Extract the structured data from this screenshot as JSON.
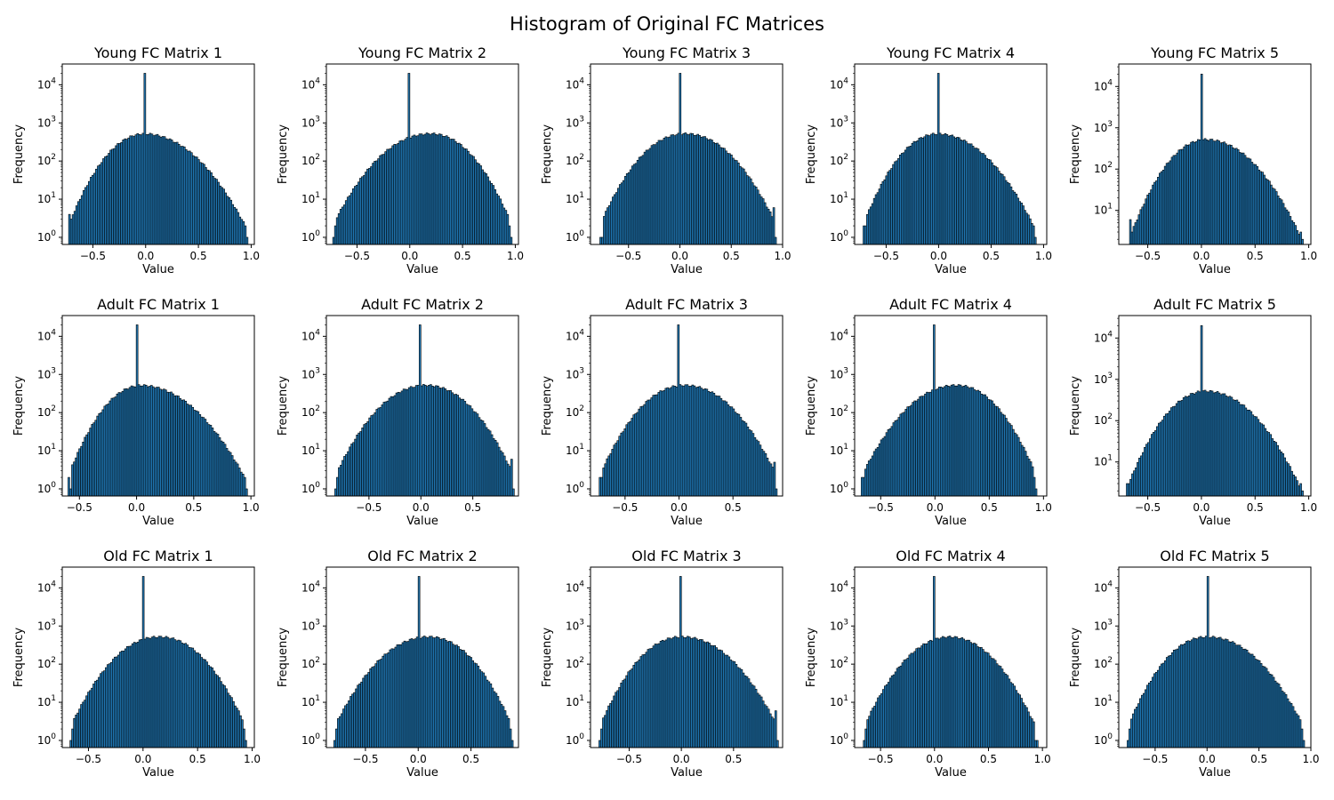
{
  "figure": {
    "title": "Histogram of Original FC Matrices",
    "bar_color": "#1f77b4",
    "edge_color": "#000000"
  },
  "chart_data": [
    {
      "type": "bar",
      "title": "Young FC Matrix 1",
      "xlabel": "Value",
      "ylabel": "Frequency",
      "yscale": "log",
      "xlim": [
        -0.79,
        1.03
      ],
      "ylim": [
        0.65,
        35000
      ],
      "xticks": [
        "-0.5",
        "0.0",
        "0.5",
        "1.0"
      ],
      "yticks": [
        "10^0",
        "10^1",
        "10^2",
        "10^3",
        "10^4"
      ],
      "range": [
        -0.73,
        0.97
      ],
      "peak": 0.0,
      "left_edge": [
        4,
        3
      ],
      "right_edge": [
        2,
        1
      ],
      "spike": 20000,
      "skew": 0.15
    },
    {
      "type": "bar",
      "title": "Young FC Matrix 2",
      "xlabel": "Value",
      "ylabel": "Frequency",
      "yscale": "log",
      "xlim": [
        -0.79,
        1.03
      ],
      "ylim": [
        0.65,
        35000
      ],
      "xticks": [
        "-0.5",
        "0.0",
        "0.5",
        "1.0"
      ],
      "yticks": [
        "10^0",
        "10^1",
        "10^2",
        "10^3",
        "10^4"
      ],
      "range": [
        -0.73,
        0.97
      ],
      "peak": 0.2,
      "left_edge": [
        1,
        2
      ],
      "right_edge": [
        2,
        1
      ],
      "spike": 20000,
      "skew": 0.0
    },
    {
      "type": "bar",
      "title": "Young FC Matrix 3",
      "xlabel": "Value",
      "ylabel": "Frequency",
      "yscale": "log",
      "xlim": [
        -0.87,
        1.0
      ],
      "ylim": [
        0.65,
        35000
      ],
      "xticks": [
        "-0.5",
        "0.0",
        "0.5",
        "1.0"
      ],
      "yticks": [
        "10^0",
        "10^1",
        "10^2",
        "10^3",
        "10^4"
      ],
      "range": [
        -0.78,
        0.94
      ],
      "peak": 0.05,
      "left_edge": [
        1,
        1
      ],
      "right_edge": [
        6,
        1
      ],
      "spike": 20000,
      "skew": 0.0
    },
    {
      "type": "bar",
      "title": "Young FC Matrix 4",
      "xlabel": "Value",
      "ylabel": "Frequency",
      "yscale": "log",
      "xlim": [
        -0.8,
        1.03
      ],
      "ylim": [
        0.65,
        35000
      ],
      "xticks": [
        "-0.5",
        "0.0",
        "0.5",
        "1.0"
      ],
      "yticks": [
        "10^0",
        "10^1",
        "10^2",
        "10^3",
        "10^4"
      ],
      "range": [
        -0.72,
        0.93
      ],
      "peak": 0.0,
      "left_edge": [
        2,
        2
      ],
      "right_edge": [
        2,
        1
      ],
      "spike": 20000,
      "skew": 0.15
    },
    {
      "type": "bar",
      "title": "Young FC Matrix 5",
      "xlabel": "Value",
      "ylabel": "Frequency",
      "yscale": "log",
      "xlim": [
        -0.77,
        1.02
      ],
      "ylim": [
        1.5,
        35000
      ],
      "xticks": [
        "-0.5",
        "0.0",
        "0.5",
        "1.0"
      ],
      "yticks": [
        "10^1",
        "10^2",
        "10^3",
        "10^4"
      ],
      "range": [
        -0.67,
        0.95
      ],
      "peak": 0.05,
      "left_edge": [
        6,
        3
      ],
      "right_edge": [
        3,
        2
      ],
      "spike": 20000,
      "skew": 0.1
    },
    {
      "type": "bar",
      "title": "Adult FC Matrix 1",
      "xlabel": "Value",
      "ylabel": "Frequency",
      "yscale": "log",
      "xlim": [
        -0.65,
        1.03
      ],
      "ylim": [
        0.65,
        35000
      ],
      "xticks": [
        "-0.5",
        "0.0",
        "0.5",
        "1.0"
      ],
      "yticks": [
        "10^0",
        "10^1",
        "10^2",
        "10^3",
        "10^4"
      ],
      "range": [
        -0.6,
        0.97
      ],
      "peak": 0.05,
      "left_edge": [
        2,
        1
      ],
      "right_edge": [
        2,
        1
      ],
      "spike": 20000,
      "skew": 0.15
    },
    {
      "type": "bar",
      "title": "Adult FC Matrix 2",
      "xlabel": "Value",
      "ylabel": "Frequency",
      "yscale": "log",
      "xlim": [
        -0.91,
        0.94
      ],
      "ylim": [
        0.65,
        35000
      ],
      "xticks": [
        "-0.5",
        "0.0",
        "0.5"
      ],
      "yticks": [
        "10^0",
        "10^1",
        "10^2",
        "10^3",
        "10^4"
      ],
      "range": [
        -0.83,
        0.9
      ],
      "peak": 0.05,
      "left_edge": [
        1,
        2
      ],
      "right_edge": [
        6,
        1
      ],
      "spike": 20000,
      "skew": 0.0
    },
    {
      "type": "bar",
      "title": "Adult FC Matrix 3",
      "xlabel": "Value",
      "ylabel": "Frequency",
      "yscale": "log",
      "xlim": [
        -0.82,
        0.96
      ],
      "ylim": [
        0.65,
        35000
      ],
      "xticks": [
        "-0.5",
        "0.0",
        "0.5"
      ],
      "yticks": [
        "10^0",
        "10^1",
        "10^2",
        "10^3",
        "10^4"
      ],
      "range": [
        -0.74,
        0.91
      ],
      "peak": 0.05,
      "left_edge": [
        2,
        2
      ],
      "right_edge": [
        5,
        1
      ],
      "spike": 20000,
      "skew": 0.0
    },
    {
      "type": "bar",
      "title": "Adult FC Matrix 4",
      "xlabel": "Value",
      "ylabel": "Frequency",
      "yscale": "log",
      "xlim": [
        -0.74,
        1.03
      ],
      "ylim": [
        0.65,
        35000
      ],
      "xticks": [
        "-0.5",
        "0.0",
        "0.5",
        "1.0"
      ],
      "yticks": [
        "10^0",
        "10^1",
        "10^2",
        "10^3",
        "10^4"
      ],
      "range": [
        -0.68,
        0.94
      ],
      "peak": 0.2,
      "left_edge": [
        2,
        2
      ],
      "right_edge": [
        2,
        1
      ],
      "spike": 20000,
      "skew": 0.0
    },
    {
      "type": "bar",
      "title": "Adult FC Matrix 5",
      "xlabel": "Value",
      "ylabel": "Frequency",
      "yscale": "log",
      "xlim": [
        -0.77,
        1.02
      ],
      "ylim": [
        1.5,
        35000
      ],
      "xticks": [
        "-0.5",
        "0.0",
        "0.5",
        "1.0"
      ],
      "yticks": [
        "10^1",
        "10^2",
        "10^3",
        "10^4"
      ],
      "range": [
        -0.7,
        0.95
      ],
      "peak": 0.05,
      "left_edge": [
        3,
        3
      ],
      "right_edge": [
        3,
        2
      ],
      "spike": 20000,
      "skew": 0.1
    },
    {
      "type": "bar",
      "title": "Old FC Matrix 1",
      "xlabel": "Value",
      "ylabel": "Frequency",
      "yscale": "log",
      "xlim": [
        -0.74,
        1.02
      ],
      "ylim": [
        0.65,
        35000
      ],
      "xticks": [
        "-0.5",
        "0.0",
        "0.5",
        "1.0"
      ],
      "yticks": [
        "10^0",
        "10^1",
        "10^2",
        "10^3",
        "10^4"
      ],
      "range": [
        -0.67,
        0.95
      ],
      "peak": 0.15,
      "left_edge": [
        1,
        2
      ],
      "right_edge": [
        2,
        1
      ],
      "spike": 20000,
      "skew": 0.0
    },
    {
      "type": "bar",
      "title": "Old FC Matrix 2",
      "xlabel": "Value",
      "ylabel": "Frequency",
      "yscale": "log",
      "xlim": [
        -0.87,
        0.95
      ],
      "ylim": [
        0.65,
        35000
      ],
      "xticks": [
        "-0.5",
        "0.0",
        "0.5"
      ],
      "yticks": [
        "10^0",
        "10^1",
        "10^2",
        "10^3",
        "10^4"
      ],
      "range": [
        -0.8,
        0.9
      ],
      "peak": 0.1,
      "left_edge": [
        1,
        2
      ],
      "right_edge": [
        2,
        1
      ],
      "spike": 20000,
      "skew": 0.0
    },
    {
      "type": "bar",
      "title": "Old FC Matrix 3",
      "xlabel": "Value",
      "ylabel": "Frequency",
      "yscale": "log",
      "xlim": [
        -0.87,
        0.97
      ],
      "ylim": [
        0.65,
        35000
      ],
      "xticks": [
        "-0.5",
        "0.0",
        "0.5"
      ],
      "yticks": [
        "10^0",
        "10^1",
        "10^2",
        "10^3",
        "10^4"
      ],
      "range": [
        -0.79,
        0.93
      ],
      "peak": 0.0,
      "left_edge": [
        1,
        2
      ],
      "right_edge": [
        6,
        1
      ],
      "spike": 20000,
      "skew": 0.0
    },
    {
      "type": "bar",
      "title": "Old FC Matrix 4",
      "xlabel": "Value",
      "ylabel": "Frequency",
      "yscale": "log",
      "xlim": [
        -0.74,
        1.04
      ],
      "ylim": [
        0.65,
        35000
      ],
      "xticks": [
        "-0.5",
        "0.0",
        "0.5",
        "1.0"
      ],
      "yticks": [
        "10^0",
        "10^1",
        "10^2",
        "10^3",
        "10^4"
      ],
      "range": [
        -0.66,
        0.96
      ],
      "peak": 0.15,
      "left_edge": [
        1,
        2
      ],
      "right_edge": [
        1,
        1
      ],
      "spike": 20000,
      "skew": 0.1
    },
    {
      "type": "bar",
      "title": "Old FC Matrix 5",
      "xlabel": "Value",
      "ylabel": "Frequency",
      "yscale": "log",
      "xlim": [
        -0.85,
        1.0
      ],
      "ylim": [
        0.65,
        35000
      ],
      "xticks": [
        "-0.5",
        "0.0",
        "0.5",
        "1.0"
      ],
      "yticks": [
        "10^0",
        "10^1",
        "10^2",
        "10^3",
        "10^4"
      ],
      "range": [
        -0.77,
        0.94
      ],
      "peak": 0.0,
      "left_edge": [
        1,
        2
      ],
      "right_edge": [
        2,
        1
      ],
      "spike": 20000,
      "skew": 0.0
    }
  ]
}
